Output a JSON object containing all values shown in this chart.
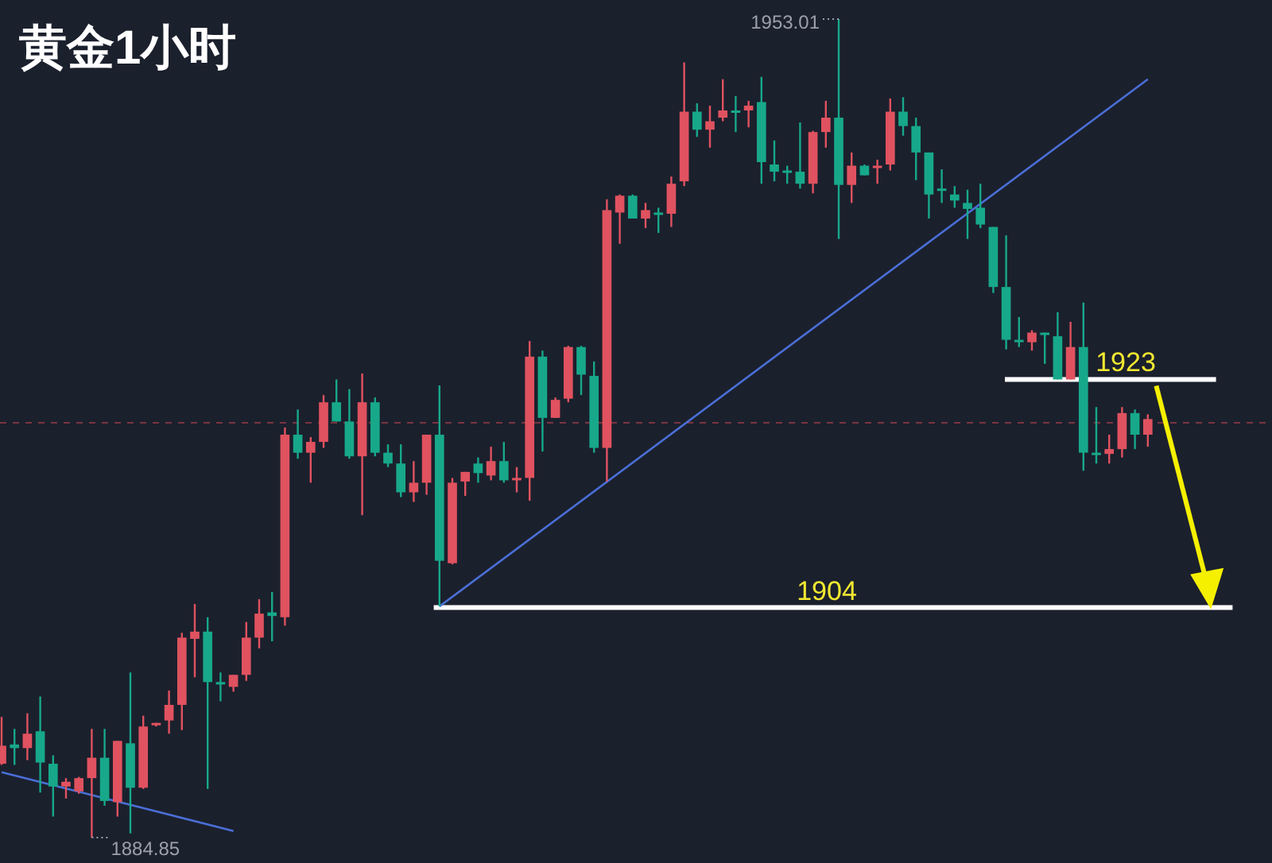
{
  "chart_data": {
    "type": "candlestick",
    "title": "黄金1小时",
    "categories": [
      null,
      null,
      null,
      null,
      null,
      null,
      null,
      null,
      null,
      null,
      null,
      null,
      null,
      null,
      null,
      null,
      null,
      null,
      null,
      null,
      null,
      null,
      null,
      null,
      null,
      null,
      null,
      null,
      null,
      null,
      null,
      null,
      null,
      null,
      null,
      null,
      null,
      null,
      null,
      null,
      null,
      null,
      null,
      null,
      null,
      null,
      null,
      null,
      null,
      null,
      null,
      null,
      null,
      null,
      null,
      null,
      null,
      null,
      null,
      null,
      null,
      null,
      null,
      null,
      null,
      null,
      null,
      null,
      null,
      null,
      null,
      null,
      null,
      null,
      null,
      null,
      null,
      null,
      null,
      null,
      null,
      null,
      null,
      null,
      null,
      null,
      null,
      null,
      null,
      null
    ],
    "ohlc": [
      [
        1891.0,
        1894.9,
        1890.9,
        1892.5
      ],
      [
        1892.6,
        1893.9,
        1890.9,
        1892.3
      ],
      [
        1892.3,
        1895.2,
        1891.3,
        1893.5
      ],
      [
        1893.7,
        1896.6,
        1888.6,
        1891.1
      ],
      [
        1891.0,
        1891.7,
        1886.6,
        1889.1
      ],
      [
        1889.1,
        1889.8,
        1888.1,
        1889.5
      ],
      [
        1888.7,
        1889.9,
        1888.5,
        1889.8
      ],
      [
        1889.8,
        1893.9,
        1884.85,
        1891.5
      ],
      [
        1891.5,
        1893.9,
        1887.5,
        1887.9
      ],
      [
        1887.8,
        1892.9,
        1886.6,
        1892.9
      ],
      [
        1892.7,
        1898.6,
        1885.2,
        1889.0
      ],
      [
        1889.0,
        1895.0,
        1888.9,
        1894.1
      ],
      [
        1894.2,
        1894.4,
        1894.1,
        1894.4
      ],
      [
        1894.6,
        1897.1,
        1893.5,
        1895.9
      ],
      [
        1895.9,
        1901.9,
        1893.8,
        1901.5
      ],
      [
        1901.4,
        1904.3,
        1898.2,
        1902.0
      ],
      [
        1902.0,
        1903.2,
        1888.9,
        1897.8
      ],
      [
        1897.8,
        1898.6,
        1896.2,
        1897.6
      ],
      [
        1897.4,
        1898.4,
        1897.0,
        1898.4
      ],
      [
        1898.4,
        1902.8,
        1897.9,
        1901.5
      ],
      [
        1901.5,
        1904.7,
        1900.6,
        1903.5
      ],
      [
        1903.6,
        1905.3,
        1901.2,
        1903.3
      ],
      [
        1903.2,
        1919.0,
        1902.5,
        1918.4
      ],
      [
        1918.4,
        1920.5,
        1916.4,
        1916.9
      ],
      [
        1916.9,
        1918.2,
        1914.4,
        1917.8
      ],
      [
        1917.8,
        1921.7,
        1917.3,
        1921.1
      ],
      [
        1921.1,
        1923.0,
        1919.5,
        1919.5
      ],
      [
        1919.5,
        1922.2,
        1916.4,
        1916.6
      ],
      [
        1916.6,
        1923.5,
        1911.7,
        1921.1
      ],
      [
        1921.1,
        1921.5,
        1916.6,
        1916.9
      ],
      [
        1916.9,
        1917.6,
        1915.7,
        1916.0
      ],
      [
        1916.0,
        1917.6,
        1913.2,
        1913.6
      ],
      [
        1913.6,
        1916.2,
        1912.8,
        1914.4
      ],
      [
        1914.4,
        1918.4,
        1913.4,
        1918.4
      ],
      [
        1918.4,
        1922.5,
        1904.1,
        1907.9
      ],
      [
        1907.7,
        1914.8,
        1907.6,
        1914.4
      ],
      [
        1914.5,
        1915.3,
        1913.3,
        1915.3
      ],
      [
        1916.0,
        1916.5,
        1914.4,
        1915.2
      ],
      [
        1915.0,
        1917.4,
        1914.6,
        1916.2
      ],
      [
        1916.2,
        1917.8,
        1914.4,
        1914.6
      ],
      [
        1914.6,
        1915.7,
        1913.6,
        1914.8
      ],
      [
        1914.8,
        1926.2,
        1912.9,
        1924.9
      ],
      [
        1924.9,
        1925.4,
        1917.0,
        1919.8
      ],
      [
        1919.8,
        1921.5,
        1919.8,
        1921.3
      ],
      [
        1921.4,
        1925.8,
        1921.1,
        1925.7
      ],
      [
        1925.7,
        1925.8,
        1921.7,
        1923.4
      ],
      [
        1923.3,
        1924.5,
        1916.9,
        1917.3
      ],
      [
        1917.3,
        1938.0,
        1914.5,
        1937.1
      ],
      [
        1936.9,
        1938.4,
        1934.3,
        1938.3
      ],
      [
        1938.3,
        1938.4,
        1936.4,
        1936.4
      ],
      [
        1936.4,
        1937.7,
        1935.6,
        1937.1
      ],
      [
        1936.9,
        1937.3,
        1935.2,
        1936.8
      ],
      [
        1936.8,
        1939.9,
        1935.7,
        1939.3
      ],
      [
        1939.5,
        1949.4,
        1939.1,
        1945.3
      ],
      [
        1945.3,
        1946.0,
        1943.2,
        1943.8
      ],
      [
        1943.8,
        1945.8,
        1942.3,
        1944.5
      ],
      [
        1944.8,
        1948.0,
        1944.5,
        1945.4
      ],
      [
        1945.4,
        1946.6,
        1943.6,
        1945.3
      ],
      [
        1945.4,
        1946.2,
        1944.0,
        1945.8
      ],
      [
        1946.1,
        1948.2,
        1939.3,
        1941.1
      ],
      [
        1940.9,
        1942.9,
        1939.5,
        1940.3
      ],
      [
        1940.4,
        1940.8,
        1939.3,
        1940.3
      ],
      [
        1940.3,
        1944.4,
        1938.9,
        1939.3
      ],
      [
        1939.3,
        1943.7,
        1938.5,
        1943.6
      ],
      [
        1943.6,
        1946.2,
        1942.3,
        1944.8
      ],
      [
        1944.8,
        1953.01,
        1934.7,
        1939.2
      ],
      [
        1939.2,
        1941.9,
        1937.7,
        1940.8
      ],
      [
        1940.8,
        1940.9,
        1940.0,
        1940.0
      ],
      [
        1940.7,
        1941.3,
        1939.3,
        1940.8
      ],
      [
        1940.9,
        1946.4,
        1940.4,
        1945.3
      ],
      [
        1945.3,
        1946.5,
        1943.3,
        1944.1
      ],
      [
        1944.1,
        1944.8,
        1939.6,
        1941.9
      ],
      [
        1941.9,
        1941.9,
        1936.4,
        1938.4
      ],
      [
        1938.9,
        1940.5,
        1937.7,
        1938.7
      ],
      [
        1938.4,
        1939.1,
        1937.3,
        1937.9
      ],
      [
        1937.7,
        1938.8,
        1934.7,
        1937.2
      ],
      [
        1937.3,
        1939.3,
        1935.6,
        1935.9
      ],
      [
        1935.7,
        1935.7,
        1930.2,
        1930.7
      ],
      [
        1930.7,
        1935.0,
        1925.5,
        1926.3
      ],
      [
        1926.3,
        1928.2,
        1925.7,
        1926.2
      ],
      [
        1926.1,
        1927.1,
        1925.4,
        1926.9
      ],
      [
        1926.9,
        1926.9,
        1924.3,
        1926.7
      ],
      [
        1926.6,
        1928.6,
        1923.0,
        1923.0
      ],
      [
        1923.0,
        1927.8,
        1923.0,
        1925.7
      ],
      [
        1925.7,
        1929.4,
        1915.4,
        1916.9
      ],
      [
        1916.9,
        1920.7,
        1916.0,
        1916.8
      ],
      [
        1916.8,
        1918.4,
        1916.0,
        1917.2
      ],
      [
        1917.2,
        1920.7,
        1916.5,
        1920.2
      ],
      [
        1920.2,
        1920.5,
        1917.2,
        1918.4
      ],
      [
        1918.4,
        1920.1,
        1917.4,
        1919.7
      ]
    ],
    "colors": [
      "#e0525f",
      "#17a88a",
      "#e0525f",
      "#17a88a",
      "#17a88a",
      "#e0525f",
      "#e0525f",
      "#e0525f",
      "#17a88a",
      "#e0525f",
      "#17a88a",
      "#e0525f",
      "#e0525f",
      "#e0525f",
      "#e0525f",
      "#e0525f",
      "#17a88a",
      "#17a88a",
      "#e0525f",
      "#e0525f",
      "#e0525f",
      "#17a88a",
      "#e0525f",
      "#17a88a",
      "#e0525f",
      "#e0525f",
      "#17a88a",
      "#17a88a",
      "#e0525f",
      "#17a88a",
      "#17a88a",
      "#17a88a",
      "#e0525f",
      "#e0525f",
      "#17a88a",
      "#e0525f",
      "#e0525f",
      "#17a88a",
      "#e0525f",
      "#17a88a",
      "#e0525f",
      "#e0525f",
      "#17a88a",
      "#e0525f",
      "#e0525f",
      "#17a88a",
      "#17a88a",
      "#e0525f",
      "#e0525f",
      "#17a88a",
      "#e0525f",
      "#17a88a",
      "#e0525f",
      "#e0525f",
      "#17a88a",
      "#e0525f",
      "#e0525f",
      "#17a88a",
      "#e0525f",
      "#17a88a",
      "#17a88a",
      "#17a88a",
      "#17a88a",
      "#e0525f",
      "#e0525f",
      "#17a88a",
      "#e0525f",
      "#17a88a",
      "#e0525f",
      "#e0525f",
      "#17a88a",
      "#17a88a",
      "#17a88a",
      "#17a88a",
      "#17a88a",
      "#17a88a",
      "#17a88a",
      "#17a88a",
      "#17a88a",
      "#17a88a",
      "#e0525f",
      "#17a88a",
      "#17a88a",
      "#e0525f",
      "#17a88a",
      "#17a88a",
      "#e0525f",
      "#e0525f",
      "#17a88a",
      "#e0525f"
    ],
    "series": [
      {
        "type": "line",
        "color": "#4a6fd6",
        "values": [
          null,
          null,
          null,
          null,
          null,
          null,
          null,
          null,
          null,
          null,
          null,
          null,
          null,
          null,
          null,
          null,
          null,
          null,
          null,
          null,
          null,
          null,
          null,
          null,
          null,
          null,
          null,
          null,
          null,
          null,
          null,
          null,
          null,
          null,
          1904.1,
          null,
          null,
          null,
          null,
          null,
          null,
          null,
          null,
          null,
          null,
          null,
          null,
          null,
          null,
          null,
          null,
          null,
          null,
          null,
          null,
          null,
          null,
          null,
          null,
          null,
          null,
          null,
          null,
          null,
          null,
          null,
          null,
          null,
          null,
          null,
          null,
          null,
          null,
          null,
          null,
          null,
          null,
          null,
          null,
          null,
          null,
          null,
          null,
          null,
          null,
          null,
          null,
          null,
          null,
          1948.0
        ]
      },
      {
        "type": "line",
        "color": "#4a6fd6",
        "values": [
          1890.3,
          null,
          null,
          null,
          null,
          null,
          null,
          null,
          null,
          null,
          null,
          null,
          null,
          null,
          null,
          null,
          null,
          null,
          1885.4,
          null,
          null,
          null,
          null,
          null,
          null,
          null,
          null,
          null,
          null,
          null,
          null,
          null,
          null,
          null,
          null,
          null,
          null,
          null,
          null,
          null,
          null,
          null,
          null,
          null,
          null,
          null,
          null,
          null,
          null,
          null,
          null,
          null,
          null,
          null,
          null,
          null,
          null,
          null,
          null,
          null,
          null,
          null,
          null,
          null,
          null,
          null,
          null,
          null,
          null,
          null,
          null,
          null,
          null,
          null,
          null,
          null,
          null,
          null,
          null,
          null,
          null,
          null,
          null,
          null,
          null,
          null,
          null,
          null,
          null,
          null
        ]
      }
    ],
    "ref_lines": [
      {
        "axis": "y",
        "value": 1923,
        "label": "1923",
        "color": "#ffffff"
      },
      {
        "axis": "y",
        "value": 1904,
        "label": "1904",
        "color": "#ffffff"
      },
      {
        "axis": "y",
        "value": 1919.4,
        "color": "#7a3440",
        "line_style": "dashed"
      }
    ],
    "annotations": [
      "1953.01",
      "1884.85"
    ]
  }
}
